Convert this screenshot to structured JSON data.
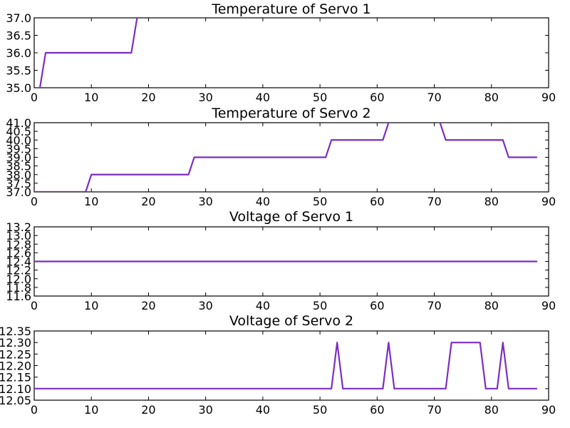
{
  "chart_data": [
    {
      "type": "line",
      "title": "Temperature of Servo 1",
      "xlabel": "",
      "ylabel": "",
      "xlim": [
        0,
        90
      ],
      "ylim": [
        35.0,
        37.0
      ],
      "xticks": [
        "0",
        "10",
        "20",
        "30",
        "40",
        "50",
        "60",
        "70",
        "80",
        "90"
      ],
      "yticks": [
        "35.0",
        "35.5",
        "36.0",
        "36.5",
        "37.0"
      ],
      "series": [
        {
          "name": "Temperature of Servo 1",
          "color": "#7b2fc0",
          "x": [
            0,
            1,
            2,
            17,
            18,
            19
          ],
          "y": [
            34.6,
            35.0,
            36.0,
            36.0,
            37.0,
            37.4
          ]
        }
      ]
    },
    {
      "type": "line",
      "title": "Temperature of Servo 2",
      "xlabel": "",
      "ylabel": "",
      "xlim": [
        0,
        90
      ],
      "ylim": [
        37.0,
        41.0
      ],
      "xticks": [
        "0",
        "10",
        "20",
        "30",
        "40",
        "50",
        "60",
        "70",
        "80",
        "90"
      ],
      "yticks": [
        "37.0",
        "37.5",
        "38.0",
        "38.5",
        "39.0",
        "39.5",
        "40.0",
        "40.5",
        "41.0"
      ],
      "series": [
        {
          "name": "Temperature of Servo 2",
          "color": "#7b2fc0",
          "x": [
            0,
            9,
            10,
            27,
            28,
            51,
            52,
            61,
            62,
            63,
            70,
            71,
            72,
            82,
            83,
            88
          ],
          "y": [
            37.0,
            37.0,
            38.0,
            38.0,
            39.0,
            39.0,
            40.0,
            40.0,
            41.0,
            41.4,
            41.4,
            41.0,
            40.0,
            40.0,
            39.0,
            39.0
          ]
        }
      ]
    },
    {
      "type": "line",
      "title": "Voltage of Servo 1",
      "xlabel": "",
      "ylabel": "",
      "xlim": [
        0,
        90
      ],
      "ylim": [
        11.6,
        13.2
      ],
      "xticks": [
        "0",
        "10",
        "20",
        "30",
        "40",
        "50",
        "60",
        "70",
        "80",
        "90"
      ],
      "yticks": [
        "11.6",
        "11.8",
        "12.0",
        "12.2",
        "12.4",
        "12.6",
        "12.8",
        "13.0",
        "13.2"
      ],
      "series": [
        {
          "name": "Voltage of Servo 1",
          "color": "#7b2fc0",
          "x": [
            0,
            88
          ],
          "y": [
            12.4,
            12.4
          ]
        }
      ]
    },
    {
      "type": "line",
      "title": "Voltage of Servo 2",
      "xlabel": "",
      "ylabel": "",
      "xlim": [
        0,
        90
      ],
      "ylim": [
        12.05,
        12.35
      ],
      "xticks": [
        "0",
        "10",
        "20",
        "30",
        "40",
        "50",
        "60",
        "70",
        "80",
        "90"
      ],
      "yticks": [
        "12.05",
        "12.10",
        "12.15",
        "12.20",
        "12.25",
        "12.30",
        "12.35"
      ],
      "series": [
        {
          "name": "Voltage of Servo 2",
          "color": "#7b2fc0",
          "x": [
            0,
            52,
            53,
            54,
            61,
            62,
            63,
            72,
            73,
            78,
            79,
            81,
            82,
            83,
            88
          ],
          "y": [
            12.1,
            12.1,
            12.3,
            12.1,
            12.1,
            12.3,
            12.1,
            12.1,
            12.3,
            12.3,
            12.1,
            12.1,
            12.3,
            12.1,
            12.1
          ]
        }
      ]
    }
  ]
}
